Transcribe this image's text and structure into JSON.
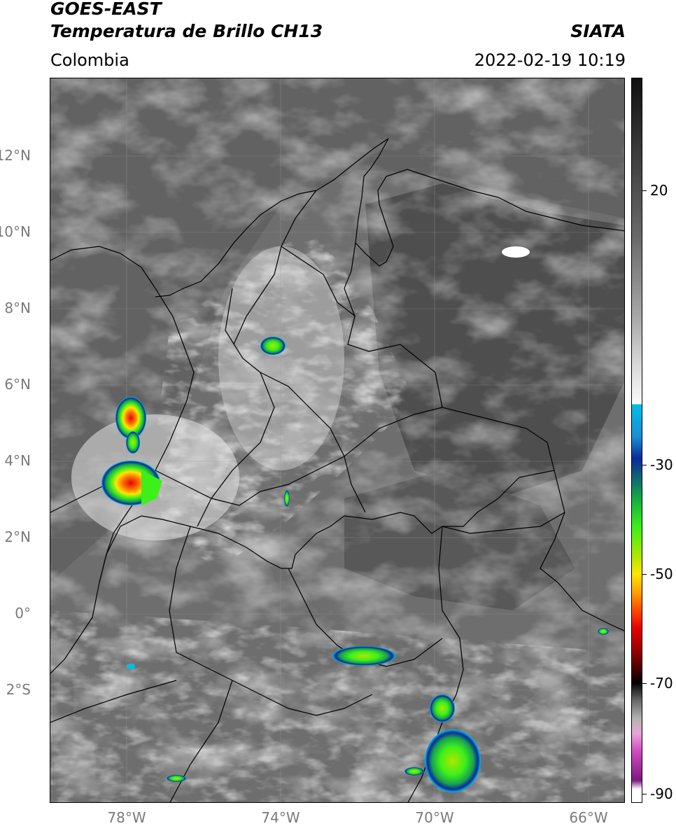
{
  "header": {
    "satellite": "GOES-EAST",
    "product": "Temperatura de Brillo CH13",
    "organization": "SIATA",
    "region": "Colombia",
    "datetime": "2022-02-19 10:19"
  },
  "axes": {
    "lat_labels": [
      "12°N",
      "10°N",
      "8°N",
      "6°N",
      "4°N",
      "2°N",
      "0°",
      "2°S"
    ],
    "lat_values": [
      12,
      10,
      8,
      6,
      4,
      2,
      0,
      -2
    ],
    "lon_labels": [
      "78°W",
      "74°W",
      "70°W",
      "66°W"
    ],
    "lon_values": [
      -78,
      -74,
      -70,
      -66
    ],
    "lon_range": [
      -80,
      -65
    ],
    "lat_range": [
      -5,
      14
    ],
    "grid": true
  },
  "colorbar": {
    "labels": [
      "20",
      "-30",
      "-50",
      "-70",
      "-90"
    ],
    "values": [
      20,
      -30,
      -50,
      -70,
      -90
    ],
    "range": [
      35,
      -92
    ]
  },
  "map": {
    "ocean_color": "#5f5f5f",
    "land_color": "#7a7a7a",
    "border_color": "#000000",
    "convective_colors": [
      "#00bfe6",
      "#0a2a9a",
      "#18b43c",
      "#3df01a",
      "#ffe600",
      "#ff4a00",
      "#e60000"
    ]
  }
}
